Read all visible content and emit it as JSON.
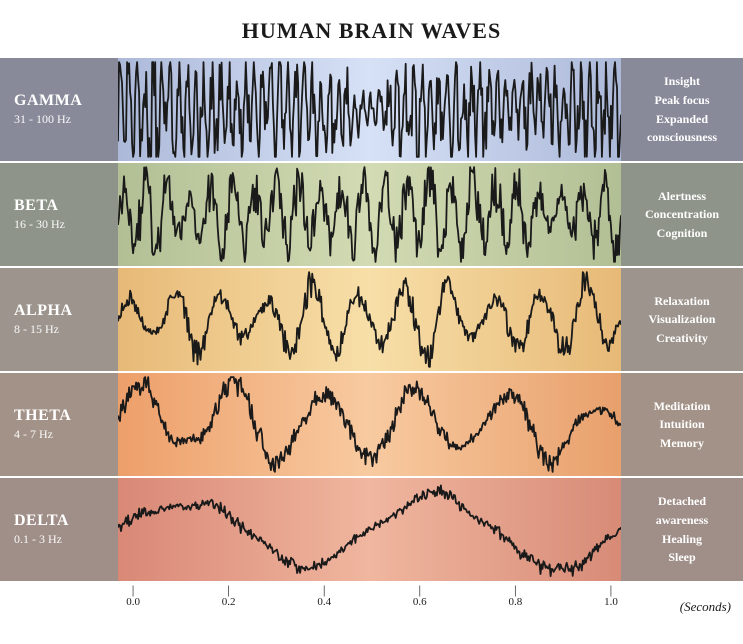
{
  "title": "HUMAN BRAIN WAVES",
  "wave_stroke": "#1a1a1a",
  "wave_stroke_width": 1.8,
  "axis": {
    "ticks": [
      "0.0",
      "0.2",
      "0.4",
      "0.6",
      "0.8",
      "1.0"
    ],
    "positions_pct": [
      3,
      22,
      41,
      60,
      79,
      98
    ],
    "label": "(Seconds)"
  },
  "rows": [
    {
      "name": "GAMMA",
      "freq": "31 - 100 Hz",
      "traits": [
        "Insight",
        "Peak focus",
        "Expanded",
        "consciousness"
      ],
      "side_color": "#888a9a",
      "mid_gradient": [
        "#acb9d9",
        "#d6e1f6",
        "#acb9d9"
      ],
      "freq_hz": 60,
      "amp_jitter": 0.85
    },
    {
      "name": "BETA",
      "freq": "16 - 30 Hz",
      "traits": [
        "Alertness",
        "Concentration",
        "Cognition"
      ],
      "side_color": "#8e9489",
      "mid_gradient": [
        "#b2bf95",
        "#d2dbb3",
        "#b2bf95"
      ],
      "freq_hz": 23,
      "amp_jitter": 0.7
    },
    {
      "name": "ALPHA",
      "freq": "8 - 15 Hz",
      "traits": [
        "Relaxation",
        "Visualization",
        "Creativity"
      ],
      "side_color": "#9c948d",
      "mid_gradient": [
        "#e7b977",
        "#f7dfa8",
        "#e7b977"
      ],
      "freq_hz": 11,
      "amp_jitter": 0.35
    },
    {
      "name": "THETA",
      "freq": "4 - 7 Hz",
      "traits": [
        "Meditation",
        "Intuition",
        "Memory"
      ],
      "side_color": "#a39287",
      "mid_gradient": [
        "#ed9f6a",
        "#f8caa0",
        "#e8a06c"
      ],
      "freq_hz": 5.5,
      "amp_jitter": 0.25
    },
    {
      "name": "DELTA",
      "freq": "0.1 - 3 Hz",
      "traits": [
        "Detached",
        "awareness",
        "Healing",
        "Sleep"
      ],
      "side_color": "#a08f88",
      "mid_gradient": [
        "#d98876",
        "#f0b69f",
        "#d78b77"
      ],
      "freq_hz": 2,
      "amp_jitter": 0.15
    }
  ]
}
